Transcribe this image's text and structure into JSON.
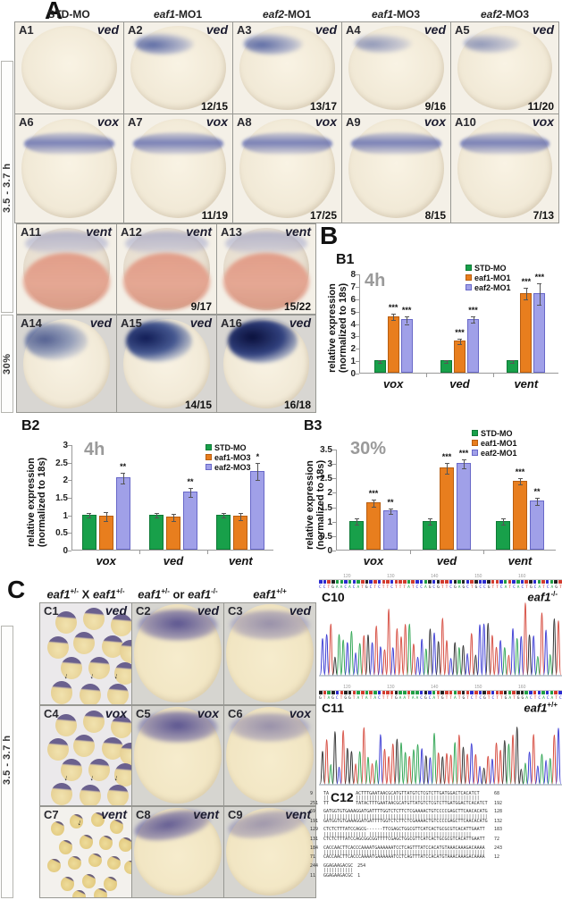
{
  "panel_a": {
    "label": "A",
    "time_label": "3.5 - 3.7 h",
    "stage_label": "30%",
    "col_headers": [
      {
        "em": "",
        "t": "STD-MO"
      },
      {
        "em": "eaf1",
        "t": "-MO1"
      },
      {
        "em": "eaf2",
        "t": "-MO1"
      },
      {
        "em": "eaf1",
        "t": "-MO3"
      },
      {
        "em": "eaf2",
        "t": "-MO3"
      }
    ],
    "cells": [
      {
        "id": "A1",
        "gene": "ved",
        "ratio": ""
      },
      {
        "id": "A2",
        "gene": "ved",
        "ratio": "12/15"
      },
      {
        "id": "A3",
        "gene": "ved",
        "ratio": "13/17"
      },
      {
        "id": "A4",
        "gene": "ved",
        "ratio": "9/16"
      },
      {
        "id": "A5",
        "gene": "ved",
        "ratio": "11/20"
      },
      {
        "id": "A6",
        "gene": "vox",
        "ratio": ""
      },
      {
        "id": "A7",
        "gene": "vox",
        "ratio": "11/19"
      },
      {
        "id": "A8",
        "gene": "vox",
        "ratio": "17/25"
      },
      {
        "id": "A9",
        "gene": "vox",
        "ratio": "8/15"
      },
      {
        "id": "A10",
        "gene": "vox",
        "ratio": "7/13"
      },
      {
        "id": "A11",
        "gene": "vent",
        "ratio": ""
      },
      {
        "id": "A12",
        "gene": "vent",
        "ratio": "9/17"
      },
      {
        "id": "A13",
        "gene": "vent",
        "ratio": "15/22"
      },
      {
        "id": "A14",
        "gene": "ved",
        "ratio": ""
      },
      {
        "id": "A15",
        "gene": "ved",
        "ratio": "14/15"
      },
      {
        "id": "A16",
        "gene": "ved",
        "ratio": "16/18"
      }
    ]
  },
  "panel_b": {
    "label": "B"
  },
  "chart_data": [
    {
      "id": "B1",
      "panel_label": "B1",
      "type": "bar",
      "title": "4h",
      "ylabel_line1": "relative  expression",
      "ylabel_line2": "(normalized to 18s)",
      "ylim": [
        0,
        8
      ],
      "ytick_step": 1,
      "legend_position": "top-right",
      "grid": false,
      "categories": [
        "vox",
        "ved",
        "vent"
      ],
      "series": [
        {
          "name": "STD-MO",
          "color": "#18A04A",
          "border": "#0E7A36",
          "values": [
            1,
            1,
            1
          ],
          "errors": [
            0.1,
            0.1,
            0.1
          ],
          "sig": [
            "",
            "",
            ""
          ]
        },
        {
          "name": "eaf1-MO1",
          "color": "#E87E1E",
          "border": "#B85E10",
          "values": [
            4.55,
            2.6,
            6.45
          ],
          "errors": [
            0.25,
            0.2,
            0.45
          ],
          "sig": [
            "***",
            "***",
            "***"
          ]
        },
        {
          "name": "eaf2-MO1",
          "color": "#A0A0E8",
          "border": "#6868C8",
          "values": [
            4.3,
            4.35,
            6.4
          ],
          "errors": [
            0.3,
            0.25,
            0.85
          ],
          "sig": [
            "***",
            "***",
            "***"
          ]
        }
      ]
    },
    {
      "id": "B2",
      "panel_label": "B2",
      "type": "bar",
      "title": "4h",
      "ylabel_line1": "relative  expression",
      "ylabel_line2": "(normalized to 18s)",
      "ylim": [
        0,
        3
      ],
      "ytick_step": 0.5,
      "legend_position": "top-right",
      "grid": false,
      "categories": [
        "vox",
        "ved",
        "vent"
      ],
      "series": [
        {
          "name": "STD-MO",
          "color": "#18A04A",
          "border": "#0E7A36",
          "values": [
            1,
            1,
            1
          ],
          "errors": [
            0.07,
            0.07,
            0.07
          ],
          "sig": [
            "",
            "",
            ""
          ]
        },
        {
          "name": "eaf1-MO3",
          "color": "#E87E1E",
          "border": "#B85E10",
          "values": [
            0.97,
            0.93,
            0.97
          ],
          "errors": [
            0.13,
            0.1,
            0.1
          ],
          "sig": [
            "",
            "",
            ""
          ]
        },
        {
          "name": "eaf2-MO3",
          "color": "#A0A0E8",
          "border": "#6868C8",
          "values": [
            2.05,
            1.65,
            2.25
          ],
          "errors": [
            0.15,
            0.12,
            0.25
          ],
          "sig": [
            "**",
            "**",
            "*"
          ]
        }
      ]
    },
    {
      "id": "B3",
      "panel_label": "B3",
      "type": "bar",
      "title": "30%",
      "ylabel_line1": "relative expression",
      "ylabel_line2": "(normalized to 18s)",
      "ylim": [
        0,
        3.5
      ],
      "ytick_step": 0.5,
      "legend_position": "top-right",
      "grid": false,
      "categories": [
        "vox",
        "ved",
        "vent"
      ],
      "series": [
        {
          "name": "STD-MO",
          "color": "#18A04A",
          "border": "#0E7A36",
          "values": [
            1,
            1,
            1
          ],
          "errors": [
            0.1,
            0.1,
            0.1
          ],
          "sig": [
            "",
            "",
            ""
          ]
        },
        {
          "name": "eaf1-MO1",
          "color": "#E87E1E",
          "border": "#B85E10",
          "values": [
            1.65,
            2.85,
            2.4
          ],
          "errors": [
            0.12,
            0.18,
            0.12
          ],
          "sig": [
            "***",
            "***",
            "***"
          ]
        },
        {
          "name": "eaf2-MO1",
          "color": "#A0A0E8",
          "border": "#6868C8",
          "values": [
            1.37,
            3.0,
            1.7
          ],
          "errors": [
            0.1,
            0.15,
            0.12
          ],
          "sig": [
            "**",
            "***",
            "**"
          ]
        }
      ]
    }
  ],
  "panel_c": {
    "label": "C",
    "time_label": "3.5 - 3.7 h",
    "headers": [
      {
        "p1": "eaf1",
        "s1": "+/-",
        "mid": " X ",
        "p2": "eaf1",
        "s2": "+/-"
      },
      {
        "p1": "eaf1",
        "s1": "+/-",
        "mid": " or ",
        "p2": "eaf1",
        "s2": "-/-"
      },
      {
        "p1": "eaf1",
        "s1": "+/+",
        "mid": "",
        "p2": "",
        "s2": ""
      }
    ],
    "cells": [
      {
        "id": "C1",
        "gene": "ved"
      },
      {
        "id": "C2",
        "gene": "ved"
      },
      {
        "id": "C3",
        "gene": "ved"
      },
      {
        "id": "C4",
        "gene": "vox"
      },
      {
        "id": "C5",
        "gene": "vox"
      },
      {
        "id": "C6",
        "gene": "vox"
      },
      {
        "id": "C7",
        "gene": "vent"
      },
      {
        "id": "C8",
        "gene": "vent"
      },
      {
        "id": "C9",
        "gene": "vent"
      }
    ],
    "chromatograms": [
      {
        "id": "C10",
        "base": "eaf1",
        "sup": "-/-",
        "scale": [
          "120",
          "130",
          "140",
          "150",
          "160"
        ],
        "bases": "CCTGAACACATGCTCTTCTTTATCCAGCGTTCGAGCTGCCGTTCATCACTGCATCAGT"
      },
      {
        "id": "C11",
        "base": "eaf1",
        "sup": "+/+",
        "scale": [
          "120",
          "130",
          "140",
          "150",
          "160"
        ],
        "bases": "GTAGCTGGTATATACTTTGAATAACGCATGTTATGTCTCGTCTTGATGGACTCACATC"
      }
    ],
    "alignment": {
      "id": "C12",
      "blocks": [
        {
          "t_start": "9",
          "t_seq": "TAGCTGGTATATACTTTGAATAACGCATGTTATGTCTCGTCTTGATGGACTCACATCT",
          "t_end": "68",
          "match": "||||||||||||||||||||||||||||||||||||||||||||||||||||||||||",
          "b_start": "251",
          "b_seq": "TTCTAGCTGGTATATACTTTGAATAACGCATGTTATGTCTCGTCTTGATGGACTCACATCT",
          "b_end": "192"
        },
        {
          "t_start": "69",
          "t_seq": "GATGGTGTGAAAGGATGATTTTGGTCTCTTCTCGAAAACTGTCCCCGAGCTTCAACACATG",
          "t_end": "128",
          "match": "|||||||||||||||||||||||||||||||||||||||||||||||||||||||||||||",
          "b_start": "191",
          "b_seq": "GATGGTGTGAAAGGATGATTTTGGTCTCTTCTCGAAAACTGTCCCCGAGCTTCAACACATG",
          "b_end": "132"
        },
        {
          "t_start": "129",
          "t_seq": "CTCTCTTTATCCAGCG------TTCGAGCTGGCGTTCATCACTGCGCGTCACATTGAATT",
          "t_end": "183",
          "match": "||||||||||||||||      ||||||||||||||||||||||||||||||||||||||",
          "b_start": "131",
          "b_seq": "CTCTCTTTATCCAGCGGCGGTTTTCGAGCTGGCGTTCATCACTGCGCGTCACATTGAATT",
          "b_end": "72"
        },
        {
          "t_start": "184",
          "t_seq": "CACCAACTTCACCCAAAATGAAAAAATCCTCAGTTTATCCACATGTAAACAAAGACAAAA",
          "t_end": "243",
          "match": "||||||||||||||||||||||||||||||||||||||||||||||||||||||||||||",
          "b_start": "71",
          "b_seq": "CACCAACTTCACCCAAAATGAAAAAATCCTCAGTTTATCCACATGTAAACAAAGACAAAA",
          "b_end": "12"
        },
        {
          "t_start": "244",
          "t_seq": "GGAGAAGACGC",
          "t_end": "254",
          "match": "|||||||||||",
          "b_start": "11",
          "b_seq": "GGAGAAGACGC",
          "b_end": "1"
        }
      ]
    }
  }
}
